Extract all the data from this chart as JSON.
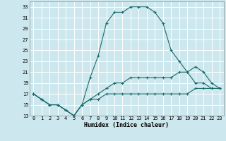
{
  "xlabel": "Humidex (Indice chaleur)",
  "bg_color": "#cce8ee",
  "grid_color": "#ffffff",
  "line_color": "#1a6b6b",
  "line1_x": [
    0,
    1,
    2,
    3,
    4,
    5,
    6,
    7,
    8,
    9,
    10,
    11,
    12,
    13,
    14,
    15,
    16,
    17,
    18,
    19,
    20,
    21,
    22,
    23
  ],
  "line1_y": [
    17,
    16,
    15,
    15,
    14,
    13,
    15,
    20,
    24,
    30,
    32,
    32,
    33,
    33,
    33,
    32,
    30,
    25,
    23,
    21,
    19,
    19,
    18,
    18
  ],
  "line2_x": [
    0,
    1,
    2,
    3,
    4,
    5,
    6,
    7,
    8,
    9,
    10,
    11,
    12,
    13,
    14,
    15,
    16,
    17,
    18,
    19,
    20,
    21,
    22,
    23
  ],
  "line2_y": [
    17,
    16,
    15,
    15,
    14,
    13,
    15,
    16,
    17,
    18,
    19,
    19,
    20,
    20,
    20,
    20,
    20,
    20,
    21,
    21,
    22,
    21,
    19,
    18
  ],
  "line3_x": [
    0,
    1,
    2,
    3,
    4,
    5,
    6,
    7,
    8,
    9,
    10,
    11,
    12,
    13,
    14,
    15,
    16,
    17,
    18,
    19,
    20,
    21,
    22,
    23
  ],
  "line3_y": [
    17,
    16,
    15,
    15,
    14,
    13,
    15,
    16,
    16,
    17,
    17,
    17,
    17,
    17,
    17,
    17,
    17,
    17,
    17,
    17,
    18,
    18,
    18,
    18
  ],
  "ylim": [
    13,
    34
  ],
  "xlim": [
    -0.5,
    23.5
  ],
  "yticks": [
    13,
    15,
    17,
    19,
    21,
    23,
    25,
    27,
    29,
    31,
    33
  ],
  "xticks": [
    0,
    1,
    2,
    3,
    4,
    5,
    6,
    7,
    8,
    9,
    10,
    11,
    12,
    13,
    14,
    15,
    16,
    17,
    18,
    19,
    20,
    21,
    22,
    23
  ]
}
